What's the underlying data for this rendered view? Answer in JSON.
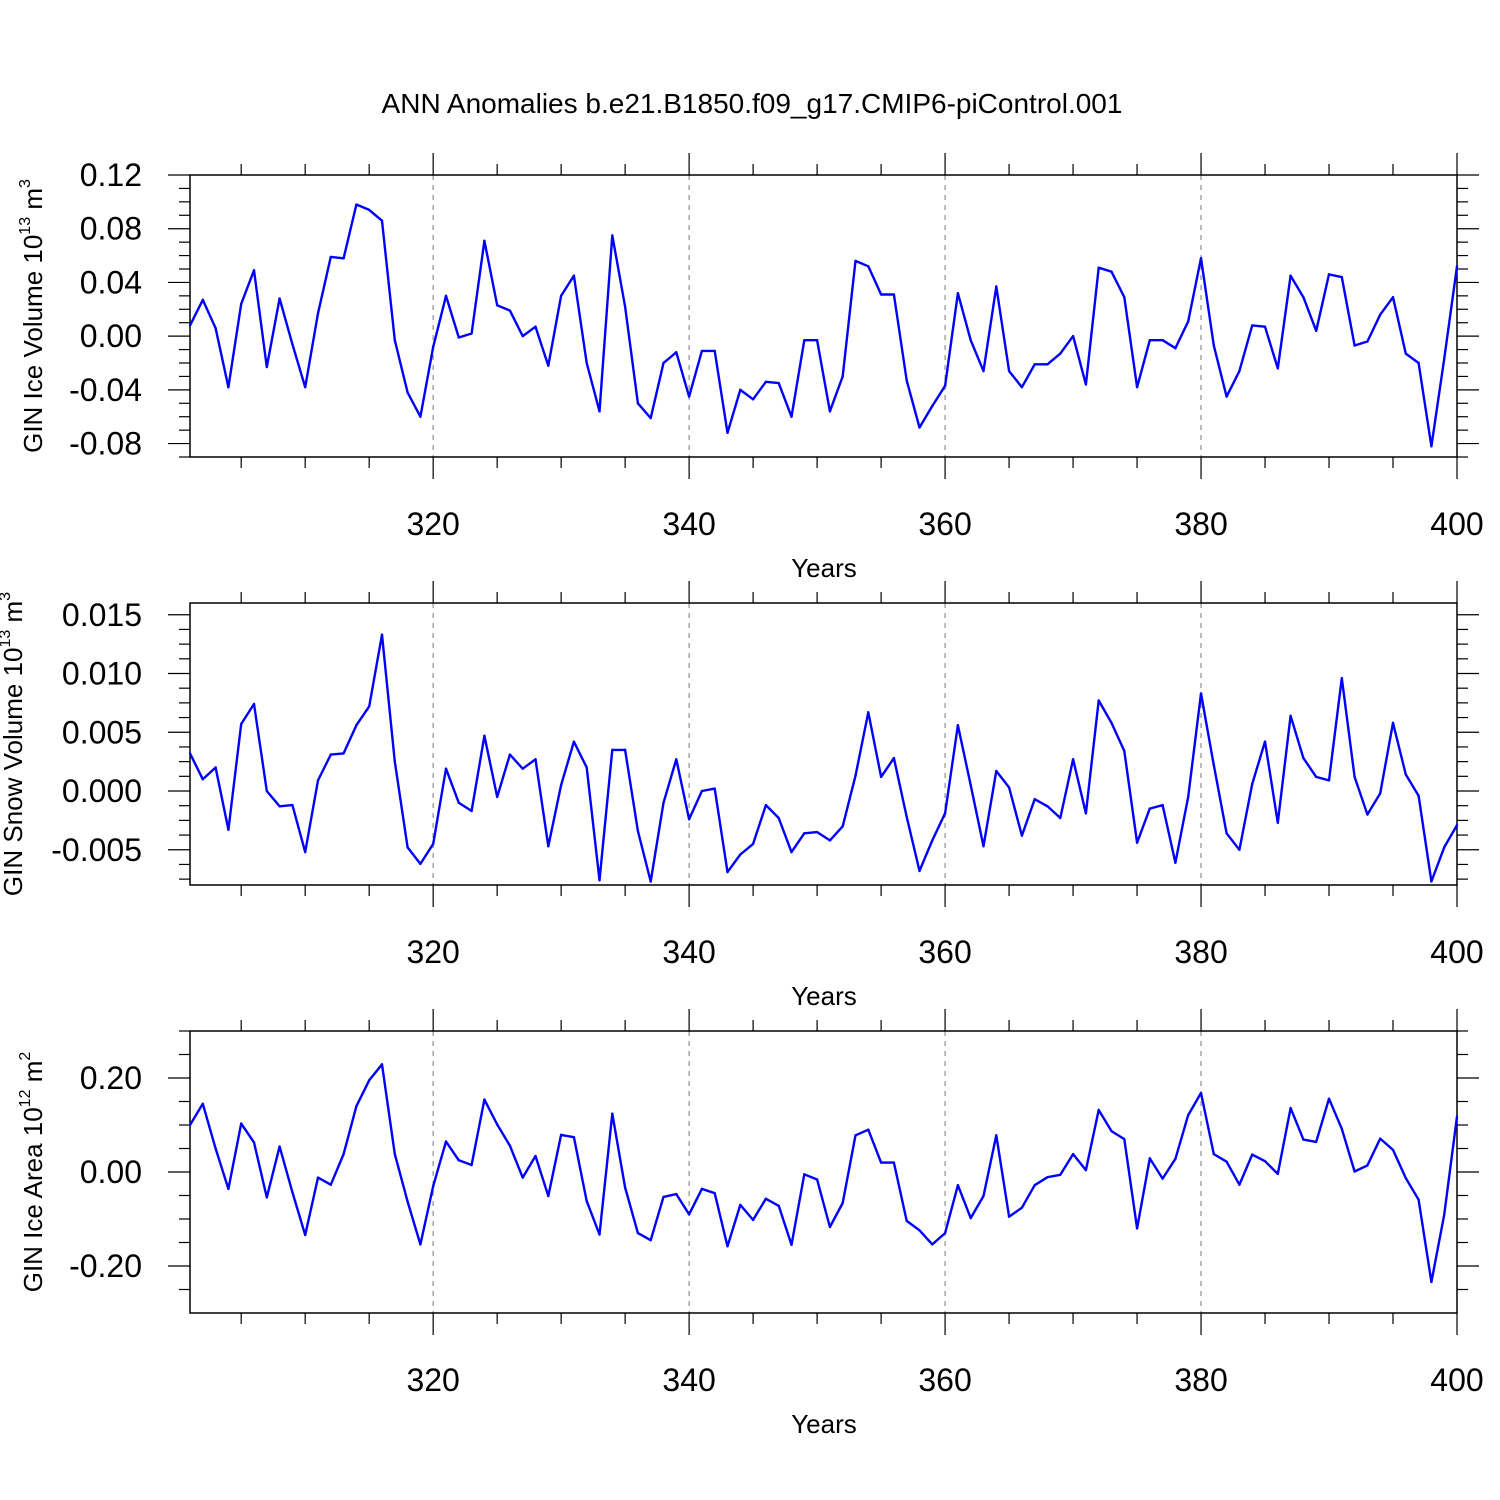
{
  "title": "ANN Anomalies b.e21.B1850.f09_g17.CMIP6-piControl.001",
  "chart_data": [
    {
      "type": "line",
      "title": "ANN Anomalies b.e21.B1850.f09_g17.CMIP6-piControl.001",
      "xlabel": "Years",
      "ylabel": {
        "text": "GIN Ice Volume 10",
        "sup": "13",
        "unit": " m",
        "unit_sup": "3"
      },
      "xlim": [
        301,
        400
      ],
      "ylim": [
        -0.09,
        0.12
      ],
      "xticks": [
        "320",
        "340",
        "360",
        "380",
        "400"
      ],
      "xtick_values": [
        320,
        340,
        360,
        380,
        400
      ],
      "yticks": [
        "-0.08",
        "-0.04",
        "0.00",
        "0.04",
        "0.08",
        "0.12"
      ],
      "ytick_values": [
        -0.08,
        -0.04,
        0.0,
        0.04,
        0.08,
        0.12
      ],
      "grid": "dashed vertical at major x ticks",
      "color": "#0000ff",
      "x_start": 301,
      "values": [
        0.008,
        0.027,
        0.006,
        -0.038,
        0.024,
        0.049,
        -0.023,
        0.028,
        -0.006,
        -0.038,
        0.017,
        0.059,
        0.058,
        0.098,
        0.094,
        0.086,
        -0.003,
        -0.042,
        -0.06,
        -0.008,
        0.03,
        -0.001,
        0.002,
        0.071,
        0.023,
        0.019,
        0.0,
        0.007,
        -0.022,
        0.03,
        0.045,
        -0.02,
        -0.056,
        0.075,
        0.022,
        -0.05,
        -0.061,
        -0.02,
        -0.012,
        -0.045,
        -0.011,
        -0.011,
        -0.072,
        -0.04,
        -0.047,
        -0.034,
        -0.035,
        -0.06,
        -0.003,
        -0.003,
        -0.056,
        -0.03,
        0.056,
        0.052,
        0.031,
        0.031,
        -0.033,
        -0.068,
        -0.052,
        -0.037,
        0.032,
        -0.003,
        -0.026,
        0.037,
        -0.026,
        -0.038,
        -0.021,
        -0.021,
        -0.013,
        0.0,
        -0.036,
        0.051,
        0.048,
        0.029,
        -0.038,
        -0.003,
        -0.003,
        -0.009,
        0.011,
        0.058,
        -0.007,
        -0.045,
        -0.026,
        0.008,
        0.007,
        -0.024,
        0.045,
        0.029,
        0.004,
        0.046,
        0.044,
        -0.007,
        -0.004,
        0.016,
        0.029,
        -0.013,
        -0.02,
        -0.082,
        -0.017,
        0.052
      ]
    },
    {
      "type": "line",
      "xlabel": "Years",
      "ylabel": {
        "text": "GIN Snow Volume 10",
        "sup": "13",
        "unit": " m",
        "unit_sup": "3"
      },
      "xlim": [
        301,
        400
      ],
      "ylim": [
        -0.008,
        0.016
      ],
      "xticks": [
        "320",
        "340",
        "360",
        "380",
        "400"
      ],
      "xtick_values": [
        320,
        340,
        360,
        380,
        400
      ],
      "yticks": [
        "-0.005",
        "0.000",
        "0.005",
        "0.010",
        "0.015"
      ],
      "ytick_values": [
        -0.005,
        0.0,
        0.005,
        0.01,
        0.015
      ],
      "grid": "dashed vertical at major x ticks",
      "color": "#0000ff",
      "x_start": 301,
      "values": [
        0.0032,
        0.001,
        0.002,
        -0.0033,
        0.0057,
        0.0074,
        0.0,
        -0.0013,
        -0.0012,
        -0.0052,
        0.0009,
        0.0031,
        0.0032,
        0.0056,
        0.0072,
        0.0133,
        0.0025,
        -0.0048,
        -0.0062,
        -0.0045,
        0.0019,
        -0.001,
        -0.0017,
        0.0047,
        -0.0005,
        0.0031,
        0.0019,
        0.0027,
        -0.0047,
        0.0005,
        0.0042,
        0.002,
        -0.0076,
        0.0035,
        0.0035,
        -0.0034,
        -0.0077,
        -0.001,
        0.0027,
        -0.0024,
        0.0,
        0.0002,
        -0.0069,
        -0.0054,
        -0.0045,
        -0.0012,
        -0.0023,
        -0.0052,
        -0.0036,
        -0.0035,
        -0.0042,
        -0.003,
        0.0013,
        0.0067,
        0.0012,
        0.0028,
        -0.0022,
        -0.0068,
        -0.0042,
        -0.0019,
        0.0056,
        0.0005,
        -0.0047,
        0.0017,
        0.0003,
        -0.0038,
        -0.0007,
        -0.0013,
        -0.0023,
        0.0027,
        -0.0019,
        0.0077,
        0.0058,
        0.0034,
        -0.0044,
        -0.0015,
        -0.0012,
        -0.0061,
        -0.0005,
        0.0083,
        0.0022,
        -0.0036,
        -0.005,
        0.0006,
        0.0042,
        -0.0027,
        0.0064,
        0.0028,
        0.0012,
        0.0009,
        0.0096,
        0.0012,
        -0.002,
        -0.0002,
        0.0058,
        0.0014,
        -0.0004,
        -0.0077,
        -0.0048,
        -0.0029
      ]
    },
    {
      "type": "line",
      "xlabel": "Years",
      "ylabel": {
        "text": "GIN Ice Area 10",
        "sup": "12",
        "unit": " m",
        "unit_sup": "2"
      },
      "xlim": [
        301,
        400
      ],
      "ylim": [
        -0.3,
        0.3
      ],
      "xticks": [
        "320",
        "340",
        "360",
        "380",
        "400"
      ],
      "xtick_values": [
        320,
        340,
        360,
        380,
        400
      ],
      "yticks": [
        "-0.20",
        "0.00",
        "0.20"
      ],
      "ytick_values": [
        -0.2,
        0.0,
        0.2
      ],
      "grid": "dashed vertical at major x ticks",
      "color": "#0000ff",
      "x_start": 301,
      "values": [
        0.1,
        0.145,
        0.05,
        -0.036,
        0.103,
        0.063,
        -0.054,
        0.054,
        -0.043,
        -0.134,
        -0.012,
        -0.027,
        0.038,
        0.14,
        0.195,
        0.229,
        0.038,
        -0.063,
        -0.154,
        -0.03,
        0.065,
        0.025,
        0.015,
        0.154,
        0.101,
        0.056,
        -0.012,
        0.034,
        -0.051,
        0.079,
        0.074,
        -0.062,
        -0.133,
        0.124,
        -0.033,
        -0.13,
        -0.145,
        -0.053,
        -0.047,
        -0.09,
        -0.036,
        -0.045,
        -0.158,
        -0.07,
        -0.102,
        -0.057,
        -0.072,
        -0.155,
        -0.005,
        -0.016,
        -0.117,
        -0.066,
        0.078,
        0.09,
        0.02,
        0.02,
        -0.104,
        -0.124,
        -0.154,
        -0.13,
        -0.028,
        -0.098,
        -0.051,
        0.078,
        -0.095,
        -0.076,
        -0.028,
        -0.011,
        -0.006,
        0.038,
        0.004,
        0.132,
        0.087,
        0.07,
        -0.12,
        0.029,
        -0.014,
        0.028,
        0.121,
        0.168,
        0.038,
        0.022,
        -0.027,
        0.037,
        0.023,
        -0.004,
        0.136,
        0.069,
        0.064,
        0.156,
        0.092,
        0.001,
        0.014,
        0.071,
        0.047,
        -0.013,
        -0.059,
        -0.234,
        -0.091,
        0.118
      ]
    }
  ]
}
